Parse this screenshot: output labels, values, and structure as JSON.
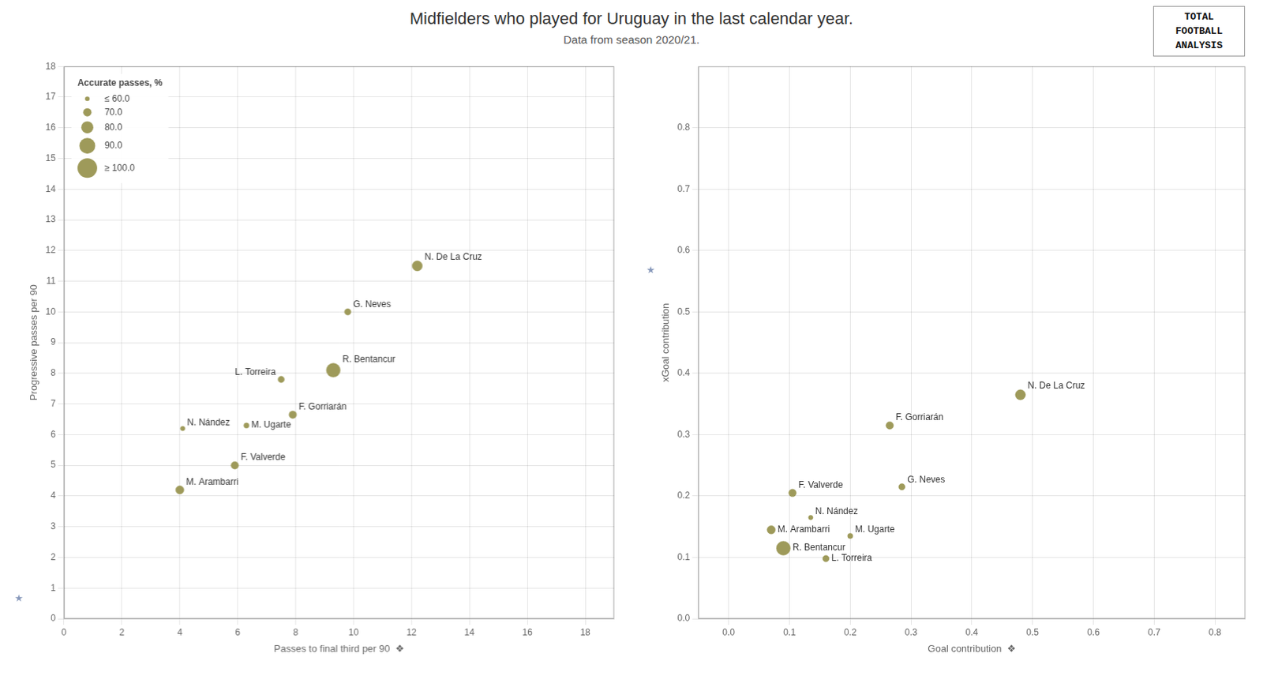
{
  "title": "Midfielders who played for Uruguay in the last calendar year.",
  "subtitle": "Data from season 2020/21.",
  "annotations": [
    {
      "text": "TOTAL"
    },
    {
      "text": "FOOTBALL"
    },
    {
      "text": "ANALYSIS"
    }
  ],
  "chart_data": [
    {
      "type": "scatter",
      "x_label": "Passes to final third per 90  ❖",
      "y_label": "Progressive passes per 90",
      "xlim": [
        0,
        19
      ],
      "ylim": [
        0,
        18
      ],
      "xticks": [
        0,
        2,
        4,
        6,
        8,
        10,
        12,
        14,
        16,
        18
      ],
      "yticks": [
        0,
        1,
        2,
        3,
        4,
        5,
        6,
        7,
        8,
        9,
        10,
        11,
        12,
        13,
        14,
        15,
        16,
        17,
        18
      ],
      "grid": true,
      "color": "#9e9a5a",
      "legend": "upper left",
      "point_labels": [
        "N. De La Cruz",
        "G. Neves",
        "R. Bentancur",
        "L. Torreira",
        "F. Gorriarán",
        "M. Ugarte",
        "N. Nández",
        "F. Valverde",
        "M. Arambarri"
      ],
      "x": [
        12.2,
        9.8,
        9.3,
        7.5,
        7.9,
        6.3,
        4.1,
        5.9,
        4.0
      ],
      "values": [
        11.5,
        10.0,
        8.1,
        7.8,
        6.65,
        6.3,
        6.2,
        5.0,
        4.2
      ],
      "sizes": [
        75,
        65,
        85,
        65,
        68,
        62,
        60,
        68,
        70
      ],
      "size_legend": {
        "title": "Accurate passes, %",
        "values": [
          60,
          70,
          80,
          90,
          100
        ],
        "labels": [
          "≤ 60.0",
          "70.0",
          "80.0",
          "90.0",
          "≥ 100.0"
        ]
      },
      "annotations": [
        {
          "text": "★",
          "y": 0.6388888888888888
        }
      ]
    },
    {
      "type": "scatter",
      "x_label": "Goal contribution  ❖",
      "y_label": "xGoal contribution",
      "xlim": [
        -0.05,
        0.85
      ],
      "ylim": [
        0.0,
        0.9
      ],
      "xticks": [
        {
          "value": 0.0,
          "label": "0.0"
        },
        0.1,
        0.2,
        0.3,
        0.4,
        0.5,
        0.6,
        0.7,
        0.8
      ],
      "yticks": [
        {
          "value": 0.0,
          "label": "0.0"
        },
        0.1,
        0.2,
        0.3,
        0.4,
        0.5,
        0.6,
        0.7,
        0.8
      ],
      "grid": true,
      "color": "#9e9a5a",
      "point_labels": [
        "N. De La Cruz",
        "F. Gorriarán",
        "G. Neves",
        "F. Valverde",
        "N. Nández",
        "M. Ugarte",
        "M. Arambarri",
        "R. Bentancur",
        "L. Torreira"
      ],
      "x": [
        0.48,
        0.265,
        0.285,
        0.105,
        0.135,
        0.2,
        0.07,
        0.09,
        0.16
      ],
      "values": [
        0.365,
        0.315,
        0.215,
        0.205,
        0.165,
        0.135,
        0.145,
        0.115,
        0.098
      ],
      "sizes": [
        75,
        68,
        65,
        68,
        60,
        62,
        70,
        85,
        65
      ],
      "annotations": [
        {
          "text": "★",
          "y": 0.5666666666666667
        }
      ]
    }
  ]
}
